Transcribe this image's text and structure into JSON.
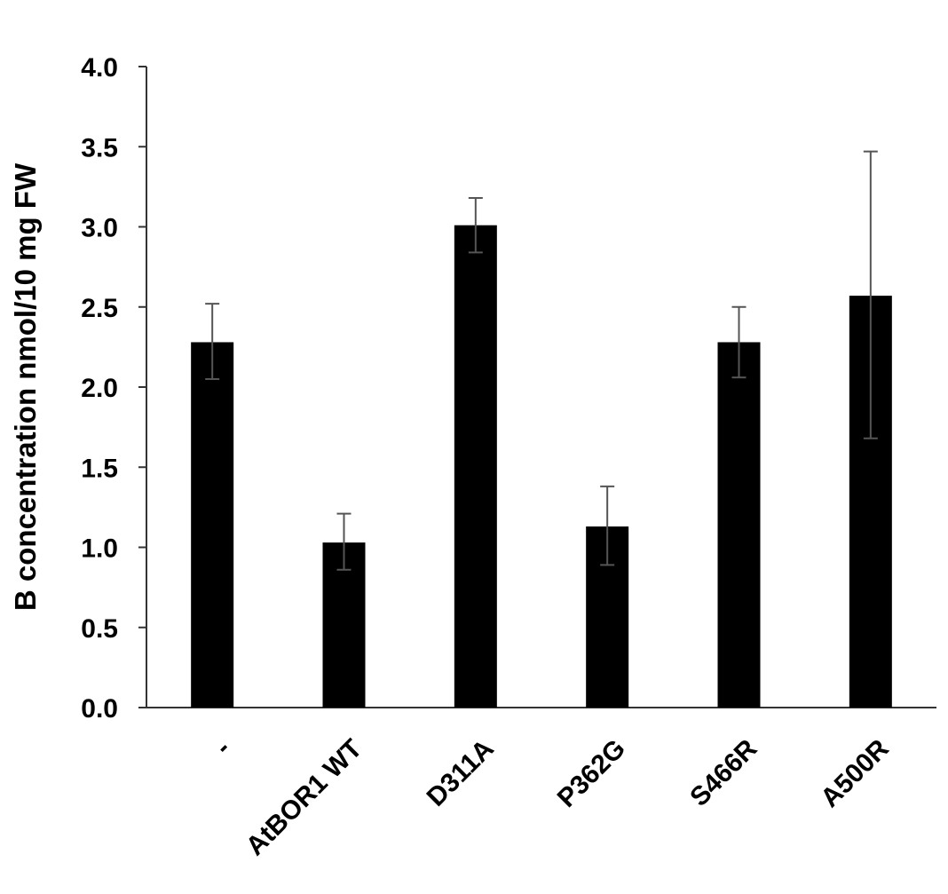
{
  "chart_data": {
    "type": "bar",
    "title": "",
    "xlabel": "",
    "ylabel": "B concentration nmol/10 mg FW",
    "categories": [
      "-",
      "AtBOR1 WT",
      "D311A",
      "P362G",
      "S466R",
      "A500R"
    ],
    "values": [
      2.28,
      1.03,
      3.01,
      1.13,
      2.28,
      2.57
    ],
    "error_bars": [
      {
        "low": 2.05,
        "high": 2.52
      },
      {
        "low": 0.86,
        "high": 1.21
      },
      {
        "low": 2.84,
        "high": 3.18
      },
      {
        "low": 0.89,
        "high": 1.38
      },
      {
        "low": 2.06,
        "high": 2.5
      },
      {
        "low": 1.68,
        "high": 3.47
      }
    ],
    "ylim": [
      0,
      4.0
    ],
    "yticks": [
      "0.0",
      "0.5",
      "1.0",
      "1.5",
      "2.0",
      "2.5",
      "3.0",
      "3.5",
      "4.0"
    ],
    "grid": false,
    "legend": "none",
    "colors": {
      "bar": "#000000",
      "error_bar": "#555555",
      "axis": "#333333",
      "text": "#000000"
    }
  }
}
